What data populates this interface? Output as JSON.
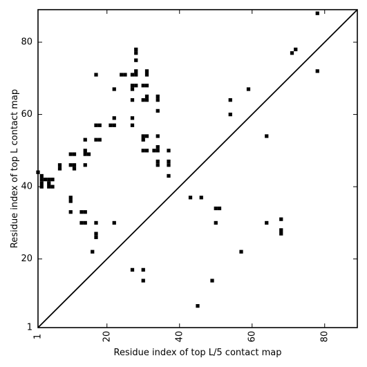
{
  "chart_data": {
    "type": "scatter",
    "title": "",
    "xlabel": "Residue index of top L/5 contact map",
    "ylabel": "Residue index of top L contact map",
    "xlim": [
      1,
      89
    ],
    "ylim": [
      1,
      89
    ],
    "x_ticks": [
      1,
      20,
      40,
      60,
      80
    ],
    "y_ticks": [
      1,
      20,
      40,
      60,
      80
    ],
    "x_tick_labels": [
      "1",
      "20",
      "40",
      "60",
      "80"
    ],
    "y_tick_labels": [
      "1",
      "20",
      "40",
      "60",
      "80"
    ],
    "x_tick_rotation": -90,
    "diagonal": true,
    "grid": false,
    "marker": "filled square",
    "colors": {
      "marker": "#000000",
      "axes": "#000000",
      "background": "#ffffff"
    },
    "points": [
      [
        1,
        44
      ],
      [
        2,
        40
      ],
      [
        2,
        41
      ],
      [
        2,
        42
      ],
      [
        2,
        43
      ],
      [
        3,
        42
      ],
      [
        4,
        42
      ],
      [
        4,
        40
      ],
      [
        4,
        41
      ],
      [
        5,
        40
      ],
      [
        5,
        42
      ],
      [
        7,
        45
      ],
      [
        7,
        46
      ],
      [
        10,
        49
      ],
      [
        11,
        49
      ],
      [
        10,
        46
      ],
      [
        11,
        45
      ],
      [
        11,
        46
      ],
      [
        10,
        36
      ],
      [
        10,
        37
      ],
      [
        10,
        33
      ],
      [
        13,
        33
      ],
      [
        14,
        33
      ],
      [
        13,
        30
      ],
      [
        14,
        30
      ],
      [
        14,
        46
      ],
      [
        14,
        49
      ],
      [
        15,
        49
      ],
      [
        14,
        50
      ],
      [
        14,
        53
      ],
      [
        16,
        22
      ],
      [
        17,
        26
      ],
      [
        17,
        27
      ],
      [
        17,
        30
      ],
      [
        17,
        53
      ],
      [
        18,
        53
      ],
      [
        17,
        57
      ],
      [
        18,
        57
      ],
      [
        17,
        71
      ],
      [
        21,
        57
      ],
      [
        22,
        57
      ],
      [
        22,
        59
      ],
      [
        22,
        67
      ],
      [
        22,
        30
      ],
      [
        24,
        71
      ],
      [
        25,
        71
      ],
      [
        27,
        17
      ],
      [
        27,
        57
      ],
      [
        27,
        59
      ],
      [
        27,
        64
      ],
      [
        27,
        67
      ],
      [
        27,
        68
      ],
      [
        27,
        71
      ],
      [
        28,
        68
      ],
      [
        28,
        71
      ],
      [
        28,
        72
      ],
      [
        28,
        75
      ],
      [
        28,
        77
      ],
      [
        28,
        78
      ],
      [
        30,
        14
      ],
      [
        30,
        17
      ],
      [
        30,
        50
      ],
      [
        30,
        53
      ],
      [
        30,
        54
      ],
      [
        30,
        64
      ],
      [
        30,
        68
      ],
      [
        31,
        50
      ],
      [
        31,
        54
      ],
      [
        31,
        64
      ],
      [
        31,
        65
      ],
      [
        31,
        68
      ],
      [
        31,
        71
      ],
      [
        31,
        72
      ],
      [
        33,
        50
      ],
      [
        34,
        50
      ],
      [
        34,
        51
      ],
      [
        34,
        54
      ],
      [
        34,
        46
      ],
      [
        34,
        47
      ],
      [
        34,
        61
      ],
      [
        34,
        64
      ],
      [
        34,
        65
      ],
      [
        37,
        43
      ],
      [
        37,
        46
      ],
      [
        37,
        47
      ],
      [
        37,
        50
      ],
      [
        43,
        37
      ],
      [
        45,
        7
      ],
      [
        46,
        37
      ],
      [
        49,
        14
      ],
      [
        50,
        30
      ],
      [
        50,
        34
      ],
      [
        51,
        34
      ],
      [
        54,
        60
      ],
      [
        54,
        64
      ],
      [
        57,
        22
      ],
      [
        59,
        67
      ],
      [
        64,
        30
      ],
      [
        64,
        54
      ],
      [
        68,
        27
      ],
      [
        68,
        28
      ],
      [
        68,
        31
      ],
      [
        71,
        77
      ],
      [
        72,
        78
      ],
      [
        78,
        72
      ],
      [
        78,
        88
      ]
    ]
  }
}
